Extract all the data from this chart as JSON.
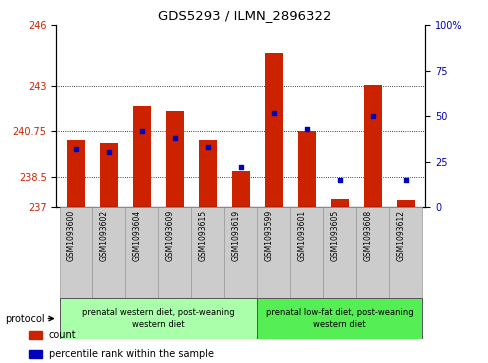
{
  "title": "GDS5293 / ILMN_2896322",
  "samples": [
    "GSM1093600",
    "GSM1093602",
    "GSM1093604",
    "GSM1093609",
    "GSM1093615",
    "GSM1093619",
    "GSM1093599",
    "GSM1093601",
    "GSM1093605",
    "GSM1093608",
    "GSM1093612"
  ],
  "count_values": [
    240.3,
    240.15,
    242.0,
    241.75,
    240.3,
    238.8,
    244.65,
    240.75,
    237.4,
    243.05,
    237.35
  ],
  "percentile_values": [
    32,
    30,
    42,
    38,
    33,
    22,
    52,
    43,
    15,
    50,
    15
  ],
  "ylim_left": [
    237,
    246
  ],
  "yticks_left": [
    237,
    238.5,
    240.75,
    243,
    246
  ],
  "yticklabels_left": [
    "237",
    "238.5",
    "240.75",
    "243",
    "246"
  ],
  "ylim_right": [
    0,
    100
  ],
  "yticks_right": [
    0,
    25,
    50,
    75,
    100
  ],
  "yticklabels_right": [
    "0",
    "25",
    "50",
    "75",
    "100%"
  ],
  "bar_color": "#cc2200",
  "dot_color": "#0000bb",
  "group1_indices": [
    0,
    1,
    2,
    3,
    4,
    5
  ],
  "group2_indices": [
    6,
    7,
    8,
    9,
    10
  ],
  "group1_label": "prenatal western diet, post-weaning\nwestern diet",
  "group2_label": "prenatal low-fat diet, post-weaning\nwestern diet",
  "group1_bg": "#aaffaa",
  "group2_bg": "#55ee55",
  "sample_bg": "#cccccc",
  "protocol_label": "protocol",
  "legend_count": "count",
  "legend_percentile": "percentile rank within the sample",
  "base_value": 237
}
